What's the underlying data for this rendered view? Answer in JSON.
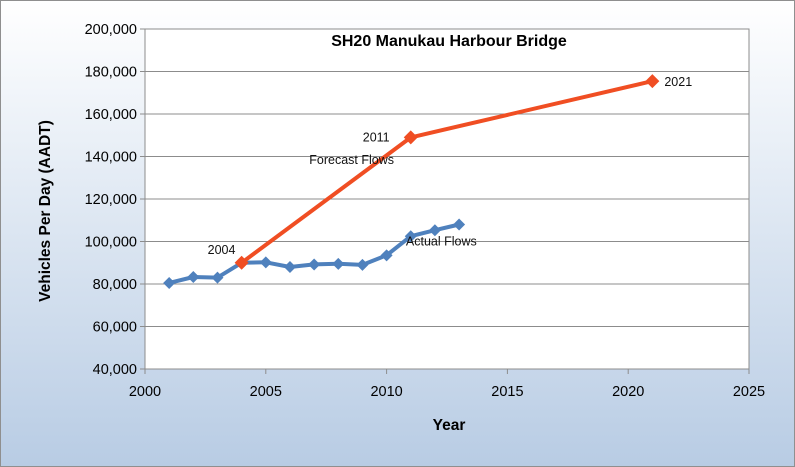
{
  "colors": {
    "background_gradient_top": "#ffffff",
    "background_gradient_bottom": "#b8cce4",
    "plot_background": "#ffffff",
    "gridline": "#8c8c8c",
    "actual_series": "#4f81bd",
    "forecast_series": "#f04e23"
  },
  "chart_data": {
    "type": "line",
    "title": "SH20 Manukau Harbour Bridge",
    "xlabel": "Year",
    "ylabel": "Vehicles Per Day (AADT)",
    "xlim": [
      2000,
      2025
    ],
    "ylim": [
      40000,
      200000
    ],
    "x_ticks": [
      "2000",
      "2005",
      "2010",
      "2015",
      "2020",
      "2025"
    ],
    "y_ticks": [
      "40,000",
      "60,000",
      "80,000",
      "100,000",
      "120,000",
      "140,000",
      "160,000",
      "180,000",
      "200,000"
    ],
    "grid": "horizontal",
    "series": [
      {
        "name": "Actual Flows",
        "marker": "diamond",
        "x": [
          2001,
          2002,
          2003,
          2004,
          2005,
          2006,
          2007,
          2008,
          2009,
          2010,
          2011,
          2012,
          2013
        ],
        "y": [
          80500,
          83300,
          83000,
          90000,
          90200,
          88000,
          89200,
          89500,
          89000,
          93500,
          102500,
          105300,
          108000
        ]
      },
      {
        "name": "Forecast Flows",
        "marker": "diamond",
        "x": [
          2004,
          2011,
          2021
        ],
        "y": [
          90000,
          149000,
          175500
        ]
      }
    ],
    "annotations": [
      {
        "text": "2004",
        "x": 2004,
        "y": 90000,
        "position": "above-left"
      },
      {
        "text": "2011",
        "x": 2011,
        "y": 149000,
        "position": "left"
      },
      {
        "text": "2021",
        "x": 2021,
        "y": 175500,
        "position": "right"
      },
      {
        "text": "Forecast Flows",
        "series": "forecast",
        "position": "left-of-line"
      },
      {
        "text": "Actual Flows",
        "series": "actual",
        "position": "below-line"
      }
    ]
  }
}
